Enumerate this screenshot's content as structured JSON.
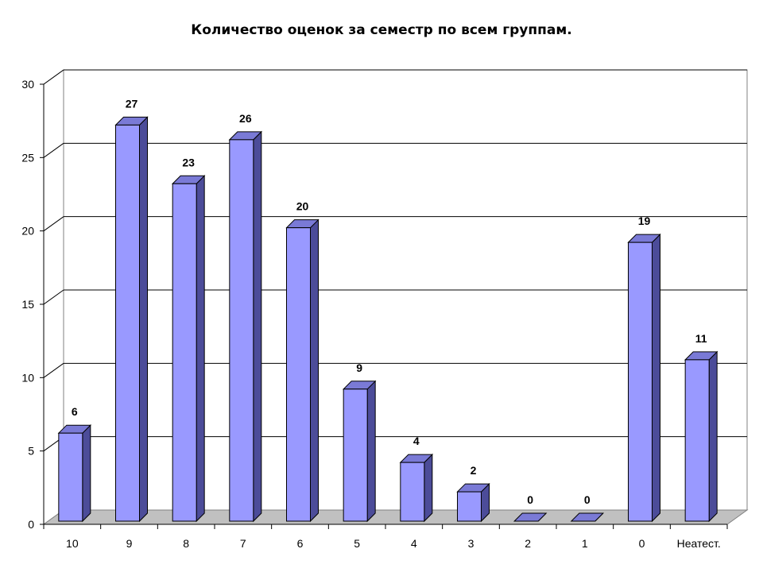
{
  "chart_data": {
    "type": "bar",
    "title": "Количество оценок за семестр по всем группам.",
    "xlabel": "",
    "ylabel": "",
    "categories": [
      "10",
      "9",
      "8",
      "7",
      "6",
      "5",
      "4",
      "3",
      "2",
      "1",
      "0",
      "Неатест."
    ],
    "values": [
      6,
      27,
      23,
      26,
      20,
      9,
      4,
      2,
      0,
      0,
      19,
      11
    ],
    "ylim": [
      0,
      30
    ],
    "yticks": [
      "0",
      "5",
      "10",
      "15",
      "20",
      "25",
      "30"
    ],
    "grid": true,
    "legend": "none",
    "three_d": true,
    "colors": {
      "bar_front": "#9999ff",
      "bar_side": "#4c4c99",
      "bar_top": "#7a7ad6",
      "floor": "#c0c0c0",
      "grid": "#000000"
    }
  }
}
